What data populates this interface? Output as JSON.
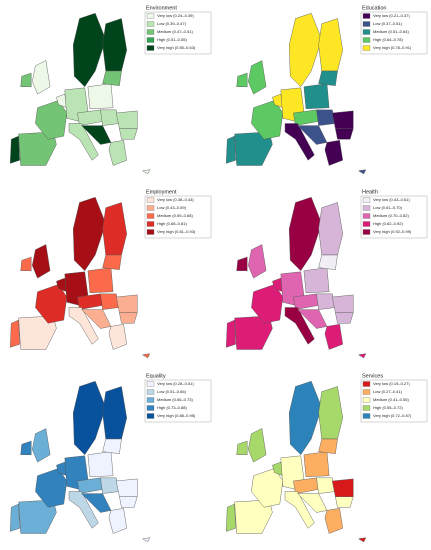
{
  "panels": [
    {
      "title": "Environment",
      "classes": [
        {
          "label": "Very low (0.24–0.39)",
          "color": "#edf8e9"
        },
        {
          "label": "Low (0.39–0.47)",
          "color": "#bae4b3"
        },
        {
          "label": "Medium (0.47–0.51)",
          "color": "#74c476"
        },
        {
          "label": "High (0.51–0.55)",
          "color": "#31a354"
        },
        {
          "label": "Very high (0.55–0.63)",
          "color": "#00441b"
        }
      ]
    },
    {
      "title": "Education",
      "classes": [
        {
          "label": "Very low (0.21–0.37)",
          "color": "#440154"
        },
        {
          "label": "Low (0.37–0.51)",
          "color": "#3b528b"
        },
        {
          "label": "Medium (0.51–0.64)",
          "color": "#21908d"
        },
        {
          "label": "High (0.64–0.78)",
          "color": "#5dc963"
        },
        {
          "label": "Very high (0.78–0.91)",
          "color": "#fde725"
        }
      ]
    },
    {
      "title": "Employment",
      "classes": [
        {
          "label": "Very low (0.38–0.43)",
          "color": "#fee5d9"
        },
        {
          "label": "Low (0.43–0.59)",
          "color": "#fcae91"
        },
        {
          "label": "Medium (0.59–0.68)",
          "color": "#fb6a4a"
        },
        {
          "label": "High (0.68–0.81)",
          "color": "#de2d26"
        },
        {
          "label": "Very high (0.81–0.93)",
          "color": "#a50f15"
        }
      ]
    },
    {
      "title": "Health",
      "classes": [
        {
          "label": "Very low (0.43–0.61)",
          "color": "#f1eef6"
        },
        {
          "label": "Low (0.61–0.70)",
          "color": "#d7b5d8"
        },
        {
          "label": "Medium (0.70–0.82)",
          "color": "#df65b0"
        },
        {
          "label": "High (0.82–0.92)",
          "color": "#dd1c77"
        },
        {
          "label": "Very high (0.92–0.99)",
          "color": "#980043"
        }
      ]
    },
    {
      "title": "Equality",
      "classes": [
        {
          "label": "Very low (0.28–0.51)",
          "color": "#eff3ff"
        },
        {
          "label": "Low (0.51–0.66)",
          "color": "#bdd7e7"
        },
        {
          "label": "Medium (0.66–0.73)",
          "color": "#6baed6"
        },
        {
          "label": "High (0.73–0.88)",
          "color": "#3182bd"
        },
        {
          "label": "Very high (0.88–0.95)",
          "color": "#08519c"
        }
      ]
    },
    {
      "title": "Services",
      "classes": [
        {
          "label": "Very low (0.19–0.27)",
          "color": "#d7191c"
        },
        {
          "label": "Low (0.27–0.41)",
          "color": "#fdae61"
        },
        {
          "label": "Medium (0.41–0.55)",
          "color": "#ffffbf"
        },
        {
          "label": "High (0.55–0.72)",
          "color": "#a6d96a"
        },
        {
          "label": "Very high (0.72–0.87)",
          "color": "#2b83ba"
        }
      ]
    }
  ]
}
